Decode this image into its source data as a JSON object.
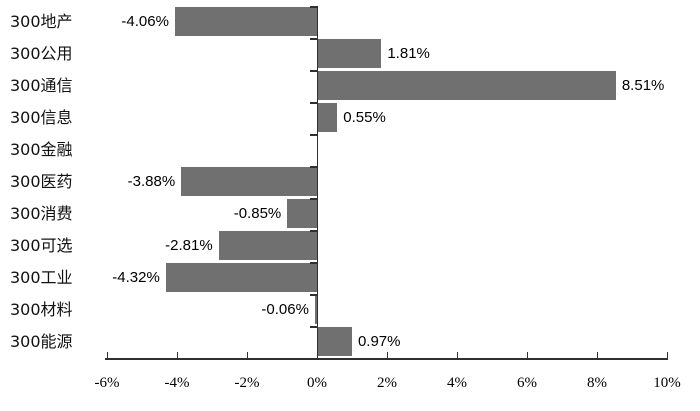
{
  "chart_data": {
    "type": "bar",
    "orientation": "horizontal",
    "title": "",
    "categories": [
      "300地产",
      "300公用",
      "300通信",
      "300信息",
      "300金融",
      "300医药",
      "300消费",
      "300可选",
      "300工业",
      "300材料",
      "300能源"
    ],
    "values": [
      -4.06,
      1.81,
      8.51,
      0.55,
      0.0,
      -3.88,
      -0.85,
      -2.81,
      -4.32,
      -0.06,
      0.97
    ],
    "value_labels": [
      "-4.06%",
      "1.81%",
      "8.51%",
      "0.55%",
      "",
      "-3.88%",
      "-0.85%",
      "-2.81%",
      "-4.32%",
      "-0.06%",
      "0.97%"
    ],
    "x_ticks": [
      {
        "value": -6,
        "label": "-6%"
      },
      {
        "value": -4,
        "label": "-4%"
      },
      {
        "value": -2,
        "label": "-2%"
      },
      {
        "value": 0,
        "label": "0%"
      },
      {
        "value": 2,
        "label": "2%"
      },
      {
        "value": 4,
        "label": "4%"
      },
      {
        "value": 6,
        "label": "6%"
      },
      {
        "value": 8,
        "label": "8%"
      },
      {
        "value": 10,
        "label": "10%"
      }
    ],
    "xlim": [
      -6,
      10
    ],
    "grid": false,
    "legend": null,
    "colors": {
      "bar": "#707070",
      "axis": "#2f2f2f",
      "text": "#000000",
      "background": "#ffffff"
    }
  }
}
